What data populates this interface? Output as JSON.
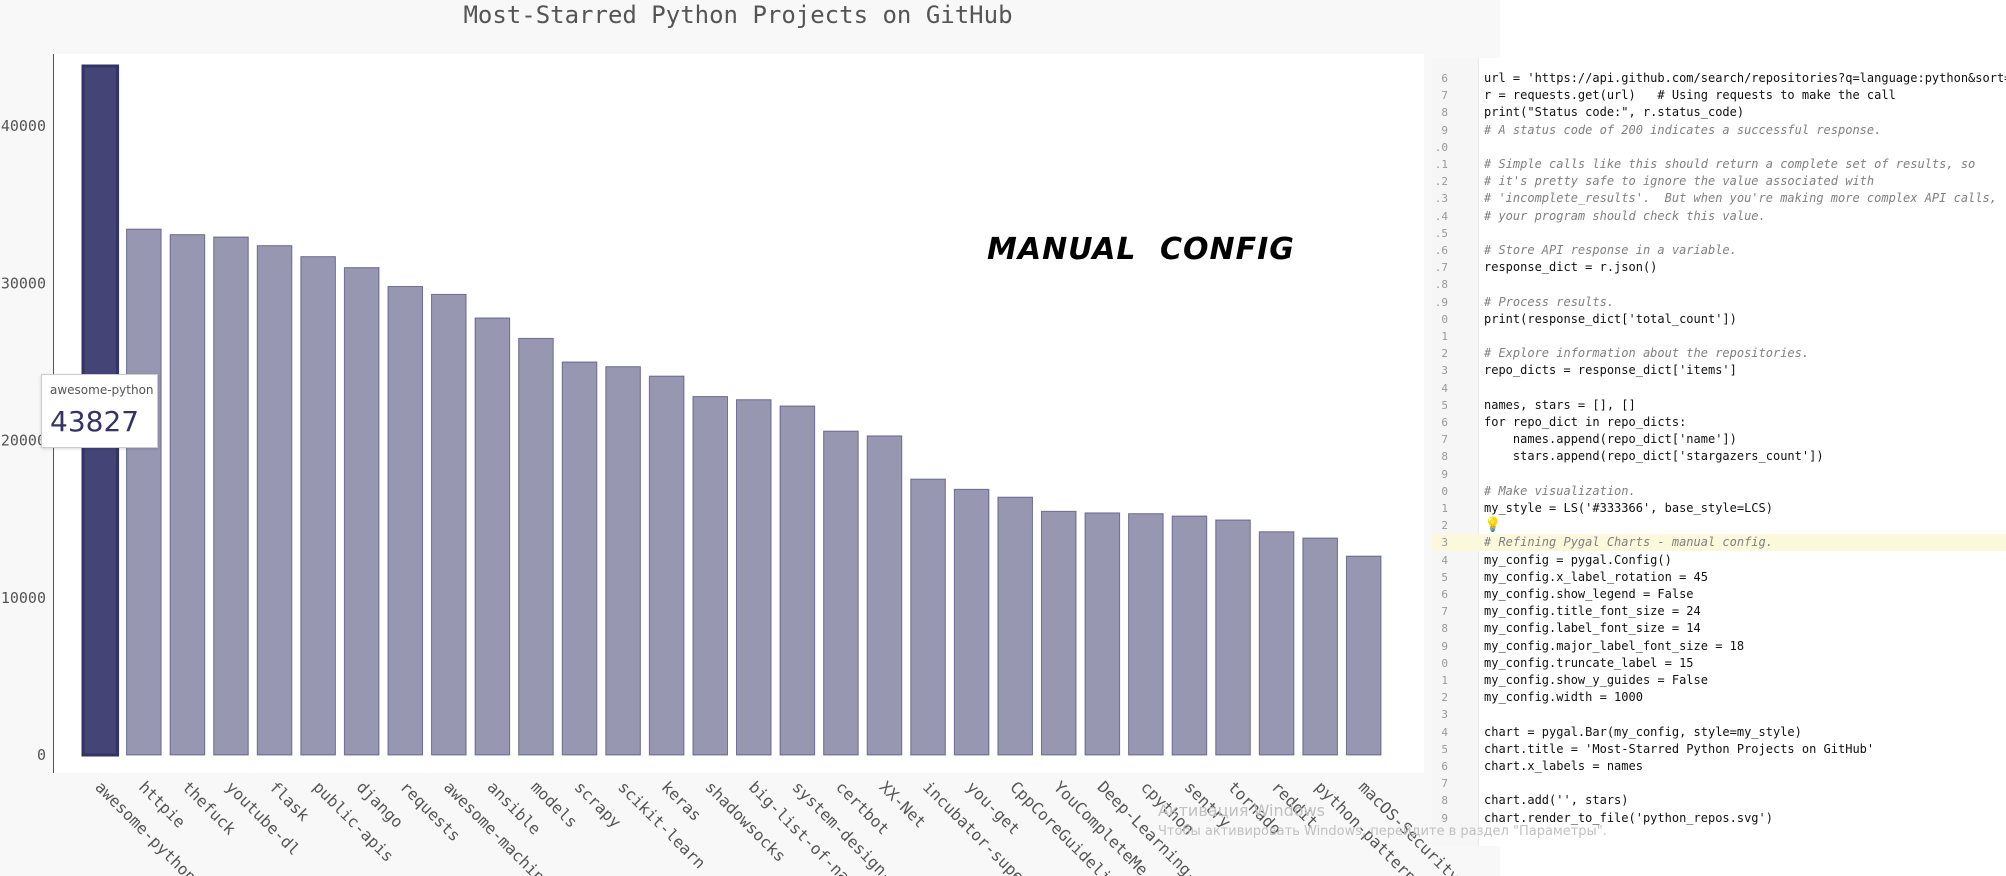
{
  "chart_data": {
    "type": "bar",
    "title": "Most-Starred Python Projects on GitHub",
    "categories": [
      "awesome-python",
      "httpie",
      "thefuck",
      "youtube-dl",
      "flask",
      "public-apis",
      "django",
      "requests",
      "awesome-machin...",
      "ansible",
      "models",
      "scrapy",
      "scikit-learn",
      "keras",
      "shadowsocks",
      "big-list-of-na...",
      "system-design-...",
      "certbot",
      "XX-Net",
      "incubator-supe...",
      "you-get",
      "CppCoreGuideli...",
      "YouCompleteMe",
      "Deep-Learning-...",
      "cpython",
      "sentry",
      "tornado",
      "reddit",
      "python-patterns",
      "macOS-Security..."
    ],
    "values": [
      43827,
      33450,
      33100,
      32950,
      32400,
      31700,
      31000,
      29800,
      29300,
      27800,
      26500,
      25000,
      24700,
      24100,
      22800,
      22600,
      22200,
      20600,
      20300,
      17550,
      16900,
      16400,
      15500,
      15400,
      15350,
      15200,
      14950,
      14200,
      13800,
      12650
    ],
    "yticks": [
      0,
      10000,
      20000,
      30000,
      40000
    ],
    "ylim": [
      0,
      45000
    ],
    "highlighted": "awesome-python",
    "show_legend": false,
    "show_y_guides": false,
    "x_label_rotation": 45,
    "colors": {
      "bar_fill": "#9797b2",
      "bar_stroke": "#333366",
      "highlight_fill": "#444477"
    }
  },
  "tooltip": {
    "label": "awesome-python",
    "value": "43827"
  },
  "annotation": "MANUAL  CONFIG",
  "code_lines": [
    {
      "n": "6",
      "t": "url = 'https://api.github.com/search/repositories?q=language:python&sort=s",
      "k": "normal"
    },
    {
      "n": "7",
      "t": "r = requests.get(url)   # Using requests to make the call",
      "k": "normal"
    },
    {
      "n": "8",
      "t": "print(\"Status code:\", r.status_code)",
      "k": "normal"
    },
    {
      "n": "9",
      "t": "# A status code of 200 indicates a successful response.",
      "k": "comment"
    },
    {
      "n": ".0",
      "t": "",
      "k": "normal"
    },
    {
      "n": ".1",
      "t": "# Simple calls like this should return a complete set of results, so",
      "k": "comment"
    },
    {
      "n": ".2",
      "t": "# it's pretty safe to ignore the value associated with",
      "k": "comment"
    },
    {
      "n": ".3",
      "t": "# 'incomplete_results'.  But when you're making more complex API calls,",
      "k": "comment"
    },
    {
      "n": ".4",
      "t": "# your program should check this value.",
      "k": "comment"
    },
    {
      "n": ".5",
      "t": "",
      "k": "normal"
    },
    {
      "n": ".6",
      "t": "# Store API response in a variable.",
      "k": "comment"
    },
    {
      "n": ".7",
      "t": "response_dict = r.json()",
      "k": "normal"
    },
    {
      "n": ".8",
      "t": "",
      "k": "normal"
    },
    {
      "n": ".9",
      "t": "# Process results.",
      "k": "comment"
    },
    {
      "n": "0",
      "t": "print(response_dict['total_count'])",
      "k": "normal"
    },
    {
      "n": "1",
      "t": "",
      "k": "normal"
    },
    {
      "n": "2",
      "t": "# Explore information about the repositories.",
      "k": "comment"
    },
    {
      "n": "3",
      "t": "repo_dicts = response_dict['items']",
      "k": "normal"
    },
    {
      "n": "4",
      "t": "",
      "k": "normal"
    },
    {
      "n": "5",
      "t": "names, stars = [], []",
      "k": "normal"
    },
    {
      "n": "6",
      "t": "for repo_dict in repo_dicts:",
      "k": "normal"
    },
    {
      "n": "7",
      "t": "    names.append(repo_dict['name'])",
      "k": "normal"
    },
    {
      "n": "8",
      "t": "    stars.append(repo_dict['stargazers_count'])",
      "k": "normal"
    },
    {
      "n": "9",
      "t": "",
      "k": "normal"
    },
    {
      "n": "0",
      "t": "# Make visualization.",
      "k": "comment"
    },
    {
      "n": "1",
      "t": "my_style = LS('#333366', base_style=LCS)",
      "k": "normal"
    },
    {
      "n": "2",
      "t": "",
      "k": "bulb"
    },
    {
      "n": "3",
      "t": "# Refining Pygal Charts - manual config.",
      "k": "comment-hl"
    },
    {
      "n": "4",
      "t": "my_config = pygal.Config()",
      "k": "normal"
    },
    {
      "n": "5",
      "t": "my_config.x_label_rotation = 45",
      "k": "normal"
    },
    {
      "n": "6",
      "t": "my_config.show_legend = False",
      "k": "normal"
    },
    {
      "n": "7",
      "t": "my_config.title_font_size = 24",
      "k": "normal"
    },
    {
      "n": "8",
      "t": "my_config.label_font_size = 14",
      "k": "normal"
    },
    {
      "n": "9",
      "t": "my_config.major_label_font_size = 18",
      "k": "normal"
    },
    {
      "n": "0",
      "t": "my_config.truncate_label = 15",
      "k": "normal"
    },
    {
      "n": "1",
      "t": "my_config.show_y_guides = False",
      "k": "normal"
    },
    {
      "n": "2",
      "t": "my_config.width = 1000",
      "k": "normal"
    },
    {
      "n": "3",
      "t": "",
      "k": "normal"
    },
    {
      "n": "4",
      "t": "chart = pygal.Bar(my_config, style=my_style)",
      "k": "normal"
    },
    {
      "n": "5",
      "t": "chart.title = 'Most-Starred Python Projects on GitHub'",
      "k": "normal"
    },
    {
      "n": "6",
      "t": "chart.x_labels = names",
      "k": "normal"
    },
    {
      "n": "7",
      "t": "",
      "k": "normal"
    },
    {
      "n": "8",
      "t": "chart.add('', stars)",
      "k": "normal"
    },
    {
      "n": "9",
      "t": "chart.render_to_file('python_repos.svg')",
      "k": "normal"
    }
  ],
  "watermark": {
    "line1": "Активация Windows",
    "line2": "Чтобы активировать Windows, перейдите в раздел \"Параметры\"."
  }
}
